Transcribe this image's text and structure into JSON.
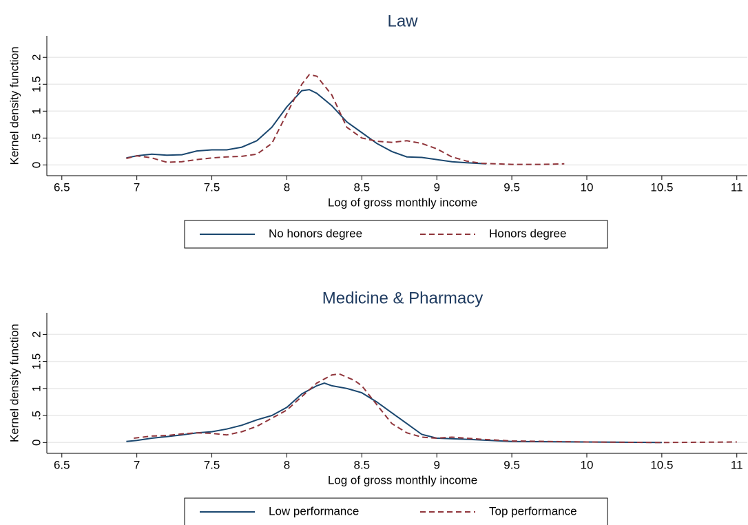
{
  "chart_data": [
    {
      "type": "line",
      "title": "Law",
      "xlabel": "Log of gross monthly income",
      "ylabel": "Kernel density function",
      "xlim": [
        6.4,
        11.07
      ],
      "xticks": [
        6.5,
        7,
        7.5,
        8,
        8.5,
        9,
        9.5,
        10,
        10.5,
        11
      ],
      "ylim": [
        -0.2,
        2.4
      ],
      "yticks": [
        0,
        {
          "value": 0.5,
          "label": ".5"
        },
        1,
        1.5,
        2
      ],
      "grid": true,
      "series": [
        {
          "name": "No honors degree",
          "color": "#1a476f",
          "dash": "solid",
          "x": [
            6.93,
            7.0,
            7.1,
            7.2,
            7.3,
            7.4,
            7.5,
            7.6,
            7.7,
            7.8,
            7.9,
            8.0,
            8.1,
            8.15,
            8.2,
            8.3,
            8.4,
            8.5,
            8.6,
            8.7,
            8.8,
            8.9,
            9.0,
            9.1,
            9.2,
            9.33
          ],
          "values": [
            0.13,
            0.17,
            0.2,
            0.18,
            0.19,
            0.26,
            0.28,
            0.28,
            0.33,
            0.45,
            0.7,
            1.08,
            1.38,
            1.4,
            1.33,
            1.1,
            0.8,
            0.6,
            0.4,
            0.25,
            0.15,
            0.14,
            0.1,
            0.06,
            0.04,
            0.02
          ]
        },
        {
          "name": "Honors degree",
          "color": "#90353b",
          "dash": "dashed",
          "x": [
            6.93,
            7.0,
            7.1,
            7.2,
            7.3,
            7.4,
            7.5,
            7.6,
            7.7,
            7.8,
            7.9,
            8.0,
            8.1,
            8.15,
            8.2,
            8.3,
            8.4,
            8.5,
            8.6,
            8.7,
            8.8,
            8.9,
            9.0,
            9.1,
            9.2,
            9.3,
            9.5,
            9.7,
            9.85
          ],
          "values": [
            0.12,
            0.17,
            0.13,
            0.05,
            0.06,
            0.1,
            0.13,
            0.15,
            0.16,
            0.2,
            0.4,
            0.95,
            1.5,
            1.68,
            1.65,
            1.3,
            0.7,
            0.5,
            0.44,
            0.42,
            0.45,
            0.4,
            0.3,
            0.15,
            0.07,
            0.03,
            0.01,
            0.01,
            0.02
          ]
        }
      ]
    },
    {
      "type": "line",
      "title": "Medicine & Pharmacy",
      "xlabel": "Log of gross monthly income",
      "ylabel": "Kernel density function",
      "xlim": [
        6.4,
        11.07
      ],
      "xticks": [
        6.5,
        7,
        7.5,
        8,
        8.5,
        9,
        9.5,
        10,
        10.5,
        11
      ],
      "ylim": [
        -0.2,
        2.4
      ],
      "yticks": [
        0,
        {
          "value": 0.5,
          "label": ".5"
        },
        1,
        1.5,
        2
      ],
      "grid": true,
      "series": [
        {
          "name": "Low performance",
          "color": "#1a476f",
          "dash": "solid",
          "x": [
            6.93,
            7.0,
            7.1,
            7.2,
            7.3,
            7.4,
            7.5,
            7.6,
            7.7,
            7.8,
            7.9,
            8.0,
            8.1,
            8.2,
            8.25,
            8.3,
            8.4,
            8.5,
            8.6,
            8.7,
            8.8,
            8.9,
            9.0,
            9.2,
            9.5,
            10.0,
            10.5
          ],
          "values": [
            0.02,
            0.04,
            0.08,
            0.11,
            0.14,
            0.18,
            0.2,
            0.25,
            0.32,
            0.42,
            0.5,
            0.65,
            0.9,
            1.05,
            1.1,
            1.05,
            1.0,
            0.92,
            0.75,
            0.55,
            0.35,
            0.15,
            0.08,
            0.06,
            0.02,
            0.01,
            0.0
          ]
        },
        {
          "name": "Top performance",
          "color": "#90353b",
          "dash": "dashed",
          "x": [
            6.98,
            7.1,
            7.2,
            7.3,
            7.4,
            7.5,
            7.6,
            7.7,
            7.8,
            7.9,
            8.0,
            8.1,
            8.2,
            8.3,
            8.35,
            8.45,
            8.5,
            8.6,
            8.7,
            8.8,
            8.9,
            9.0,
            9.1,
            9.3,
            9.5,
            10.0,
            10.5,
            11.0
          ],
          "values": [
            0.08,
            0.12,
            0.13,
            0.16,
            0.18,
            0.17,
            0.14,
            0.2,
            0.3,
            0.45,
            0.6,
            0.85,
            1.1,
            1.25,
            1.27,
            1.15,
            1.05,
            0.7,
            0.35,
            0.18,
            0.1,
            0.08,
            0.1,
            0.06,
            0.03,
            0.01,
            0.0,
            0.01
          ]
        }
      ]
    }
  ]
}
